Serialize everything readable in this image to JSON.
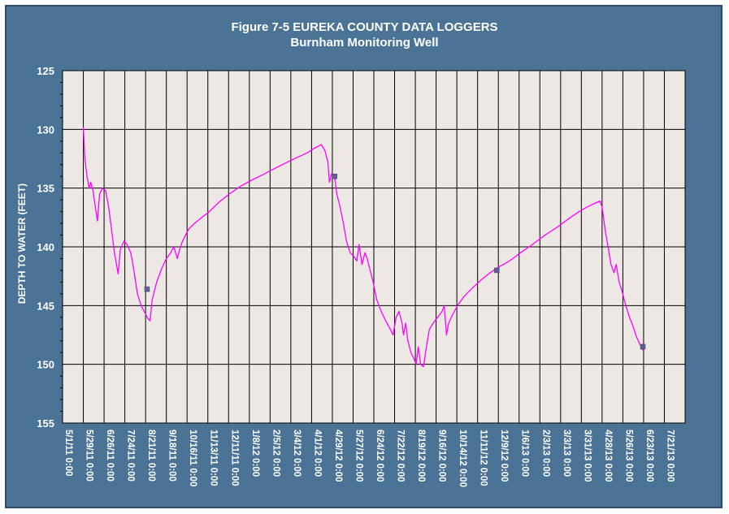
{
  "chart_data": {
    "type": "line",
    "title": "Figure 7-5 EUREKA COUNTY DATA LOGGERS",
    "subtitle": "Burnham Monitoring Well",
    "ylabel": "DEPTH TO WATER (FEET)",
    "xlabel": "",
    "ylim": [
      125,
      155
    ],
    "y_inverted": true,
    "y_ticks": [
      "125",
      "130",
      "135",
      "140",
      "145",
      "150",
      "155"
    ],
    "x_tick_labels": [
      "5/1/11 0:00",
      "5/29/11 0:00",
      "6/26/11 0:00",
      "7/24/11 0:00",
      "8/21/11 0:00",
      "9/18/11 0:00",
      "10/16/11 0:00",
      "11/13/11 0:00",
      "12/11/11 0:00",
      "1/8/12 0:00",
      "2/5/12 0:00",
      "3/4/12 0:00",
      "4/1/12 0:00",
      "4/29/12 0:00",
      "5/27/12 0:00",
      "6/24/12 0:00",
      "7/22/12 0:00",
      "8/19/12 0:00",
      "9/16/12 0:00",
      "10/14/12 0:00",
      "11/11/12 0:00",
      "12/9/12 0:00",
      "1/6/13 0:00",
      "2/3/13 0:00",
      "3/3/13 0:00",
      "3/31/13 0:00",
      "4/28/13 0:00",
      "5/26/13 0:00",
      "6/23/13 0:00",
      "7/21/13 0:00"
    ],
    "grid": true,
    "legend": "none",
    "series": [
      {
        "color": "#ff00ff",
        "points": [
          [
            "2011-05-29",
            129.8
          ],
          [
            "2011-05-31",
            132.5
          ],
          [
            "2011-06-03",
            134.0
          ],
          [
            "2011-06-06",
            135.0
          ],
          [
            "2011-06-08",
            134.5
          ],
          [
            "2011-06-11",
            135.2
          ],
          [
            "2011-06-14",
            136.5
          ],
          [
            "2011-06-17",
            137.8
          ],
          [
            "2011-06-20",
            135.5
          ],
          [
            "2011-06-24",
            135.0
          ],
          [
            "2011-06-28",
            135.2
          ],
          [
            "2011-07-02",
            136.5
          ],
          [
            "2011-07-06",
            138.5
          ],
          [
            "2011-07-10",
            140.5
          ],
          [
            "2011-07-15",
            142.3
          ],
          [
            "2011-07-18",
            140.2
          ],
          [
            "2011-07-23",
            139.5
          ],
          [
            "2011-07-27",
            139.8
          ],
          [
            "2011-08-01",
            140.5
          ],
          [
            "2011-08-04",
            141.5
          ],
          [
            "2011-08-10",
            144.0
          ],
          [
            "2011-08-15",
            145.0
          ],
          [
            "2011-08-20",
            145.6
          ],
          [
            "2011-08-24",
            146.1
          ],
          [
            "2011-08-27",
            146.3
          ],
          [
            "2011-08-30",
            144.5
          ],
          [
            "2011-09-05",
            143.0
          ],
          [
            "2011-09-12",
            141.8
          ],
          [
            "2011-09-18",
            141.0
          ],
          [
            "2011-09-24",
            140.5
          ],
          [
            "2011-09-28",
            140.0
          ],
          [
            "2011-10-03",
            141.0
          ],
          [
            "2011-10-06",
            140.2
          ],
          [
            "2011-10-10",
            139.5
          ],
          [
            "2011-10-18",
            138.5
          ],
          [
            "2011-10-26",
            138.0
          ],
          [
            "2011-11-05",
            137.5
          ],
          [
            "2011-11-15",
            137.0
          ],
          [
            "2011-11-28",
            136.2
          ],
          [
            "2011-12-12",
            135.5
          ],
          [
            "2011-12-28",
            134.8
          ],
          [
            "2012-01-12",
            134.3
          ],
          [
            "2012-01-28",
            133.8
          ],
          [
            "2012-02-12",
            133.3
          ],
          [
            "2012-02-28",
            132.8
          ],
          [
            "2012-03-12",
            132.4
          ],
          [
            "2012-03-26",
            132.0
          ],
          [
            "2012-04-05",
            131.6
          ],
          [
            "2012-04-14",
            131.3
          ],
          [
            "2012-04-19",
            131.8
          ],
          [
            "2012-04-23",
            132.8
          ],
          [
            "2012-04-25",
            134.5
          ],
          [
            "2012-04-28",
            133.8
          ],
          [
            "2012-05-02",
            134.0
          ],
          [
            "2012-05-05",
            135.5
          ],
          [
            "2012-05-09",
            136.5
          ],
          [
            "2012-05-14",
            138.0
          ],
          [
            "2012-05-18",
            139.5
          ],
          [
            "2012-05-23",
            140.5
          ],
          [
            "2012-05-28",
            140.8
          ],
          [
            "2012-06-01",
            141.2
          ],
          [
            "2012-06-04",
            139.8
          ],
          [
            "2012-06-08",
            141.5
          ],
          [
            "2012-06-12",
            140.5
          ],
          [
            "2012-06-15",
            141.0
          ],
          [
            "2012-06-19",
            142.0
          ],
          [
            "2012-06-23",
            143.0
          ],
          [
            "2012-06-28",
            144.5
          ],
          [
            "2012-07-04",
            145.5
          ],
          [
            "2012-07-10",
            146.3
          ],
          [
            "2012-07-16",
            147.0
          ],
          [
            "2012-07-20",
            147.5
          ],
          [
            "2012-07-24",
            146.0
          ],
          [
            "2012-07-28",
            145.5
          ],
          [
            "2012-08-01",
            146.5
          ],
          [
            "2012-08-03",
            147.5
          ],
          [
            "2012-08-06",
            146.5
          ],
          [
            "2012-08-09",
            148.0
          ],
          [
            "2012-08-13",
            149.0
          ],
          [
            "2012-08-17",
            149.5
          ],
          [
            "2012-08-20",
            150.0
          ],
          [
            "2012-08-23",
            148.5
          ],
          [
            "2012-08-26",
            150.0
          ],
          [
            "2012-08-30",
            150.2
          ],
          [
            "2012-09-03",
            148.5
          ],
          [
            "2012-09-07",
            147.0
          ],
          [
            "2012-09-12",
            146.5
          ],
          [
            "2012-09-18",
            146.0
          ],
          [
            "2012-09-24",
            145.5
          ],
          [
            "2012-09-27",
            145.0
          ],
          [
            "2012-09-30",
            147.5
          ],
          [
            "2012-10-03",
            146.5
          ],
          [
            "2012-10-08",
            145.8
          ],
          [
            "2012-10-15",
            145.0
          ],
          [
            "2012-10-24",
            144.2
          ],
          [
            "2012-11-04",
            143.5
          ],
          [
            "2012-11-16",
            142.8
          ],
          [
            "2012-11-28",
            142.2
          ],
          [
            "2012-12-10",
            141.7
          ],
          [
            "2012-12-24",
            141.2
          ],
          [
            "2013-01-08",
            140.5
          ],
          [
            "2013-01-24",
            139.8
          ],
          [
            "2013-02-10",
            139.0
          ],
          [
            "2013-02-27",
            138.3
          ],
          [
            "2013-03-14",
            137.6
          ],
          [
            "2013-03-28",
            137.0
          ],
          [
            "2013-04-08",
            136.6
          ],
          [
            "2013-04-18",
            136.3
          ],
          [
            "2013-04-25",
            136.1
          ],
          [
            "2013-04-28",
            136.6
          ],
          [
            "2013-05-02",
            138.5
          ],
          [
            "2013-05-06",
            140.0
          ],
          [
            "2013-05-10",
            141.5
          ],
          [
            "2013-05-14",
            142.2
          ],
          [
            "2013-05-17",
            141.5
          ],
          [
            "2013-05-21",
            143.0
          ],
          [
            "2013-05-25",
            143.8
          ],
          [
            "2013-05-30",
            145.0
          ],
          [
            "2013-06-04",
            146.0
          ],
          [
            "2013-06-09",
            146.8
          ],
          [
            "2013-06-13",
            147.6
          ],
          [
            "2013-06-18",
            148.3
          ],
          [
            "2013-06-22",
            148.8
          ]
        ]
      }
    ],
    "markers": [
      {
        "color": "#606090",
        "points": [
          [
            "2011-08-23",
            143.6
          ],
          [
            "2012-05-02",
            134.0
          ],
          [
            "2012-12-07",
            142.0
          ],
          [
            "2013-06-22",
            148.5
          ]
        ]
      }
    ],
    "colors": {
      "frame": "#4a7396",
      "plot_bg": "#ede8e4",
      "grid": "#000000",
      "text": "#ffffff"
    }
  }
}
